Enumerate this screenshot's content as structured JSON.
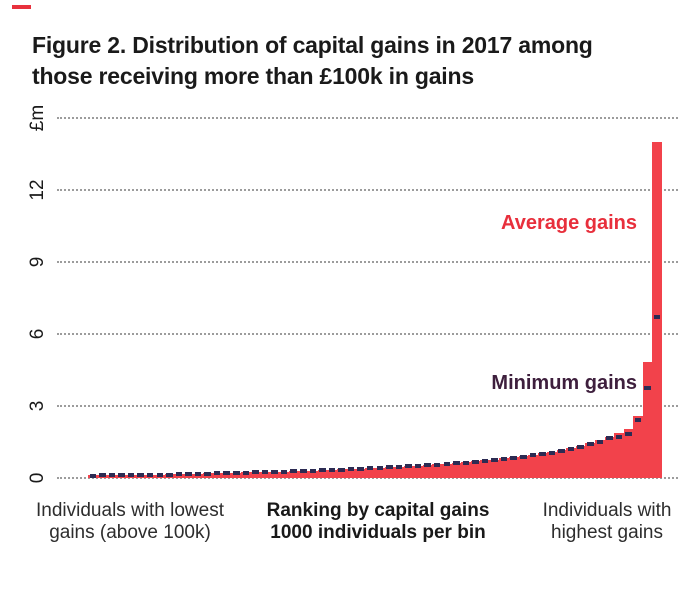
{
  "brand": {
    "mark": "red-dash",
    "color": "#e8313d"
  },
  "title": {
    "line1": "Figure 2. Distribution of capital gains in 2017 among",
    "line2": "those receiving more than £100k in gains"
  },
  "chart_data": {
    "type": "bar",
    "title": "Distribution of capital gains in 2017 among those receiving more than £100k in gains",
    "unit_label": "£m",
    "ylim": [
      0,
      15
    ],
    "yticks": {
      "values": [
        0,
        3,
        6,
        9,
        12,
        15
      ],
      "labels": [
        "0",
        "3",
        "6",
        "9",
        "12",
        "£m"
      ]
    },
    "grid": "horizontal dotted",
    "legend_position": "in-plot text annotations",
    "x_description": "60 bins, 1000 individuals per bin, ranked ascending by capital gains",
    "n_bins": 60,
    "series": [
      {
        "name": "Average gains",
        "color": "#f2424b",
        "values": [
          0.11,
          0.11,
          0.12,
          0.12,
          0.13,
          0.13,
          0.14,
          0.14,
          0.15,
          0.16,
          0.17,
          0.18,
          0.19,
          0.2,
          0.21,
          0.22,
          0.23,
          0.24,
          0.25,
          0.26,
          0.27,
          0.29,
          0.3,
          0.31,
          0.33,
          0.34,
          0.36,
          0.37,
          0.39,
          0.41,
          0.43,
          0.45,
          0.47,
          0.49,
          0.52,
          0.54,
          0.57,
          0.6,
          0.63,
          0.66,
          0.7,
          0.73,
          0.77,
          0.82,
          0.86,
          0.91,
          0.97,
          1.03,
          1.1,
          1.17,
          1.26,
          1.35,
          1.46,
          1.58,
          1.72,
          1.88,
          2.05,
          2.6,
          4.83,
          14.0
        ]
      },
      {
        "name": "Minimum gains",
        "color": "#2c2b53",
        "values": [
          0.1,
          0.11,
          0.11,
          0.12,
          0.12,
          0.13,
          0.13,
          0.14,
          0.14,
          0.15,
          0.16,
          0.17,
          0.18,
          0.19,
          0.2,
          0.21,
          0.22,
          0.23,
          0.24,
          0.25,
          0.26,
          0.28,
          0.29,
          0.3,
          0.32,
          0.33,
          0.35,
          0.36,
          0.38,
          0.4,
          0.42,
          0.44,
          0.46,
          0.48,
          0.5,
          0.53,
          0.55,
          0.58,
          0.61,
          0.64,
          0.68,
          0.71,
          0.75,
          0.79,
          0.84,
          0.89,
          0.94,
          1.0,
          1.06,
          1.13,
          1.21,
          1.3,
          1.4,
          1.52,
          1.65,
          1.72,
          1.83,
          2.4,
          3.75,
          6.7
        ]
      }
    ],
    "annotations": [
      {
        "text": "Average gains",
        "color": "#e82f3c"
      },
      {
        "text": "Minimum gains",
        "color": "#3e1f3d"
      }
    ]
  },
  "x_axis": {
    "left_line1": "Individuals with lowest",
    "left_line2": "gains (above 100k)",
    "center_line1": "Ranking by capital gains",
    "center_line2": "1000 individuals per bin",
    "right_line1": "Individuals with",
    "right_line2": "highest gains"
  }
}
